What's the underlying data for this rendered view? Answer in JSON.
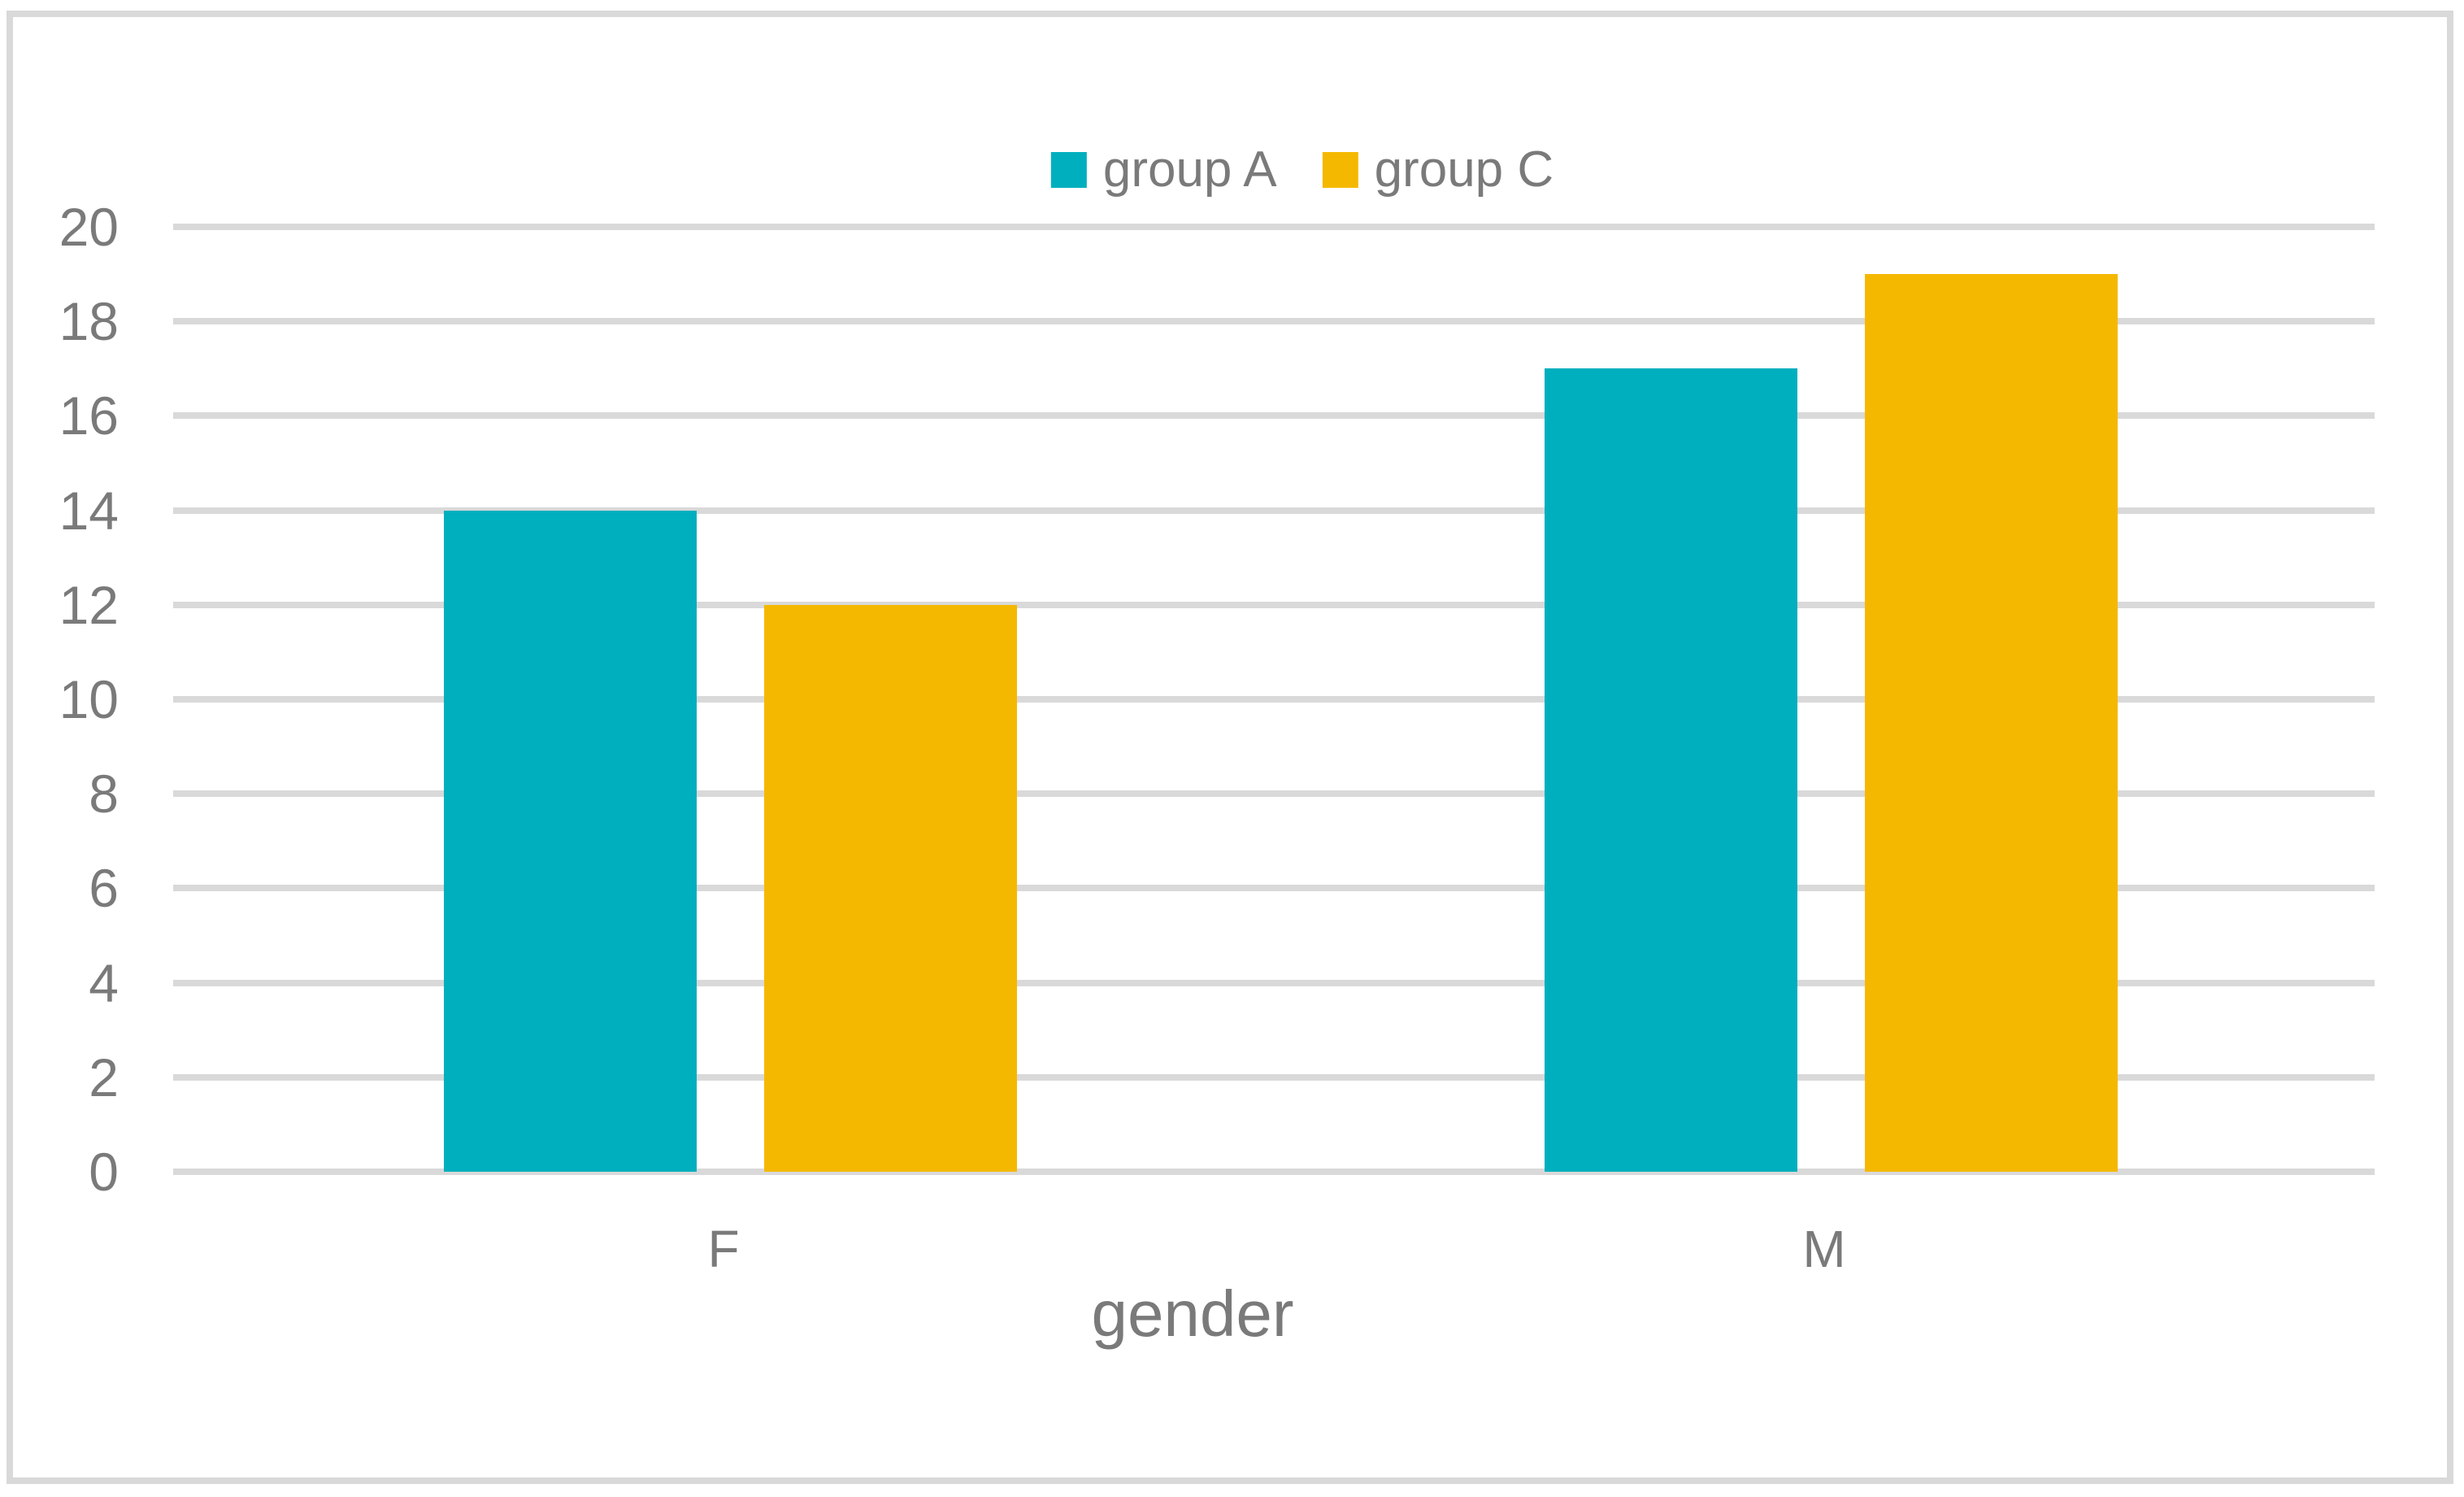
{
  "chart_data": {
    "type": "bar",
    "categories": [
      "F",
      "M"
    ],
    "series": [
      {
        "name": "group A",
        "color": "#00AFBE",
        "values": [
          14,
          17
        ]
      },
      {
        "name": "group C",
        "color": "#F5B800",
        "values": [
          12,
          19
        ]
      }
    ],
    "title": "",
    "xlabel": "gender",
    "ylabel": "",
    "ylim": [
      0,
      20
    ],
    "yticks": [
      0,
      2,
      4,
      6,
      8,
      10,
      12,
      14,
      16,
      18,
      20
    ],
    "grid": true,
    "legend_position": "top-center",
    "legend": [
      "group A",
      "group C"
    ]
  },
  "colors": {
    "series_group_a": "#00AFBE",
    "series_group_c": "#F5B800",
    "gridline": "#D9D9D9",
    "frame_border": "#D9D9D9",
    "text": "#7A7A7A",
    "background": "#FFFFFF"
  }
}
